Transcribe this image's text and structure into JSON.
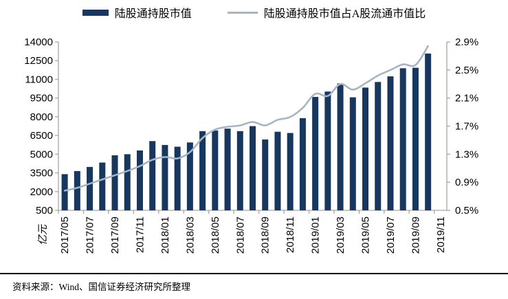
{
  "legend": {
    "items": [
      {
        "label": "陆股通持股市值",
        "type": "bar",
        "color": "#17375e"
      },
      {
        "label": "陆股通持股市值占A股流通市值比",
        "type": "line",
        "color": "#a6b5c4"
      }
    ]
  },
  "footer": {
    "source_text": "资料来源：Wind、国信证券经济研究所整理"
  },
  "chart_data": {
    "type": "bar+line",
    "title": "",
    "categories": [
      "2017/05",
      "2017/06",
      "2017/07",
      "2017/08",
      "2017/09",
      "2017/10",
      "2017/11",
      "2017/12",
      "2018/01",
      "2018/02",
      "2018/03",
      "2018/04",
      "2018/05",
      "2018/06",
      "2018/07",
      "2018/08",
      "2018/09",
      "2018/10",
      "2018/11",
      "2018/12",
      "2019/01",
      "2019/02",
      "2019/03",
      "2019/04",
      "2019/05",
      "2019/06",
      "2019/07",
      "2019/08",
      "2019/09",
      "2019/10",
      "2019/11"
    ],
    "x_tick_labels": [
      "2017/05",
      "2017/07",
      "2017/09",
      "2017/11",
      "2018/01",
      "2018/03",
      "2018/05",
      "2018/07",
      "2018/09",
      "2018/11",
      "2019/01",
      "2019/03",
      "2019/05",
      "2019/07",
      "2019/09",
      "2019/11"
    ],
    "series": [
      {
        "name": "陆股通持股市值",
        "type": "bar",
        "axis": "left",
        "color": "#17375e",
        "values": [
          3400,
          3650,
          3980,
          4330,
          4910,
          5000,
          5300,
          6050,
          5740,
          5600,
          5940,
          6850,
          6900,
          7050,
          6850,
          7250,
          6180,
          6800,
          6700,
          7890,
          9590,
          10020,
          10670,
          9560,
          10340,
          10790,
          11240,
          11890,
          11930,
          13070,
          null
        ]
      },
      {
        "name": "陆股通持股市值占A股流通市值比",
        "type": "line",
        "axis": "right",
        "color": "#a6b5c4",
        "values": [
          0.78,
          0.82,
          0.88,
          0.94,
          1.0,
          1.06,
          1.13,
          1.22,
          1.26,
          1.24,
          1.33,
          1.53,
          1.65,
          1.69,
          1.71,
          1.76,
          1.71,
          1.79,
          1.83,
          1.96,
          2.16,
          2.13,
          2.3,
          2.22,
          2.31,
          2.42,
          2.5,
          2.58,
          2.57,
          2.84,
          null
        ]
      }
    ],
    "left_axis": {
      "unit_label": "亿元",
      "min": 500,
      "max": 14000,
      "tick_step": 1500,
      "tick_labels": [
        "14000",
        "12500",
        "11000",
        "9500",
        "8000",
        "6500",
        "5000",
        "3500",
        "2000",
        "500"
      ]
    },
    "right_axis": {
      "min": 0.5,
      "max": 2.9,
      "tick_step": 0.4,
      "tick_labels": [
        "2.9%",
        "2.5%",
        "2.1%",
        "1.7%",
        "1.3%",
        "0.9%",
        "0.5%"
      ]
    },
    "grid": false,
    "legend_position": "top"
  }
}
